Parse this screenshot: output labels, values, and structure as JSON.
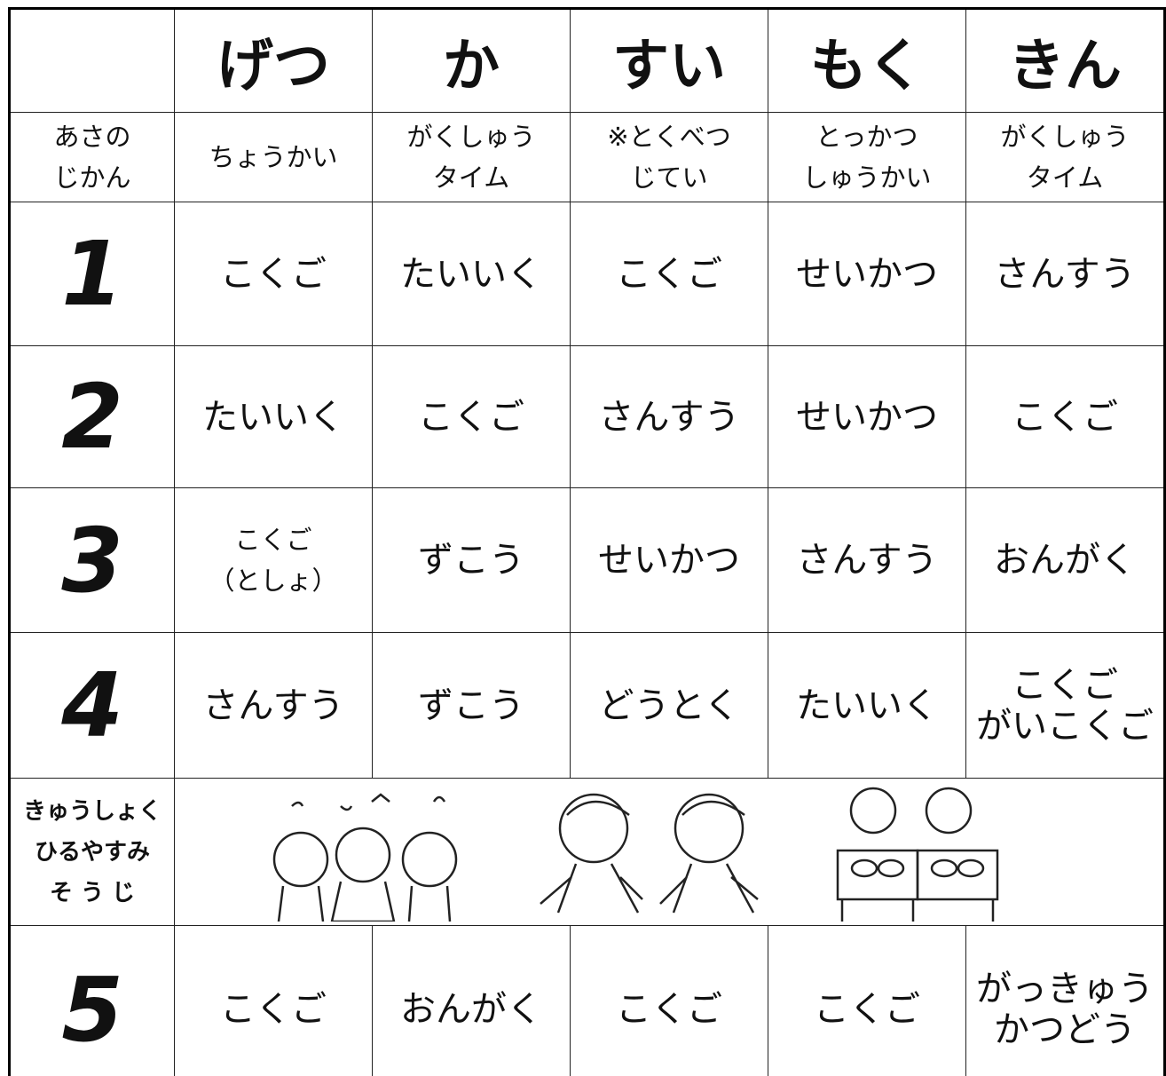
{
  "header": {
    "days": [
      "げつ",
      "か",
      "すい",
      "もく",
      "きん"
    ]
  },
  "morning": {
    "label": [
      "あさの",
      "じかん"
    ],
    "cells": [
      [
        "ちょうかい"
      ],
      [
        "がくしゅう",
        "タイム"
      ],
      [
        "※とくべつ",
        "じてい"
      ],
      [
        "とっかつ",
        "しゅうかい"
      ],
      [
        "がくしゅう",
        "タイム"
      ]
    ]
  },
  "periods": [
    {
      "label": "1",
      "cells": [
        [
          "こくご"
        ],
        [
          "たいいく"
        ],
        [
          "こくご"
        ],
        [
          "せいかつ"
        ],
        [
          "さんすう"
        ]
      ]
    },
    {
      "label": "2",
      "cells": [
        [
          "たいいく"
        ],
        [
          "こくご"
        ],
        [
          "さんすう"
        ],
        [
          "せいかつ"
        ],
        [
          "こくご"
        ]
      ]
    },
    {
      "label": "3",
      "cells": [
        [
          "こくご",
          "（としょ）"
        ],
        [
          "ずこう"
        ],
        [
          "せいかつ"
        ],
        [
          "さんすう"
        ],
        [
          "おんがく"
        ]
      ]
    },
    {
      "label": "4",
      "cells": [
        [
          "さんすう"
        ],
        [
          "ずこう"
        ],
        [
          "どうとく"
        ],
        [
          "たいいく"
        ],
        [
          "こくご",
          "がいこくご"
        ]
      ]
    }
  ],
  "lunch": {
    "label": [
      "きゅうしょく",
      "ひるやすみ",
      "そ う じ"
    ]
  },
  "afternoon": [
    {
      "label": "5",
      "cells": [
        [
          "こくご"
        ],
        [
          "おんがく"
        ],
        [
          "こくご"
        ],
        [
          "こくご"
        ],
        [
          "がっきゅう",
          "かつどう"
        ]
      ]
    }
  ]
}
